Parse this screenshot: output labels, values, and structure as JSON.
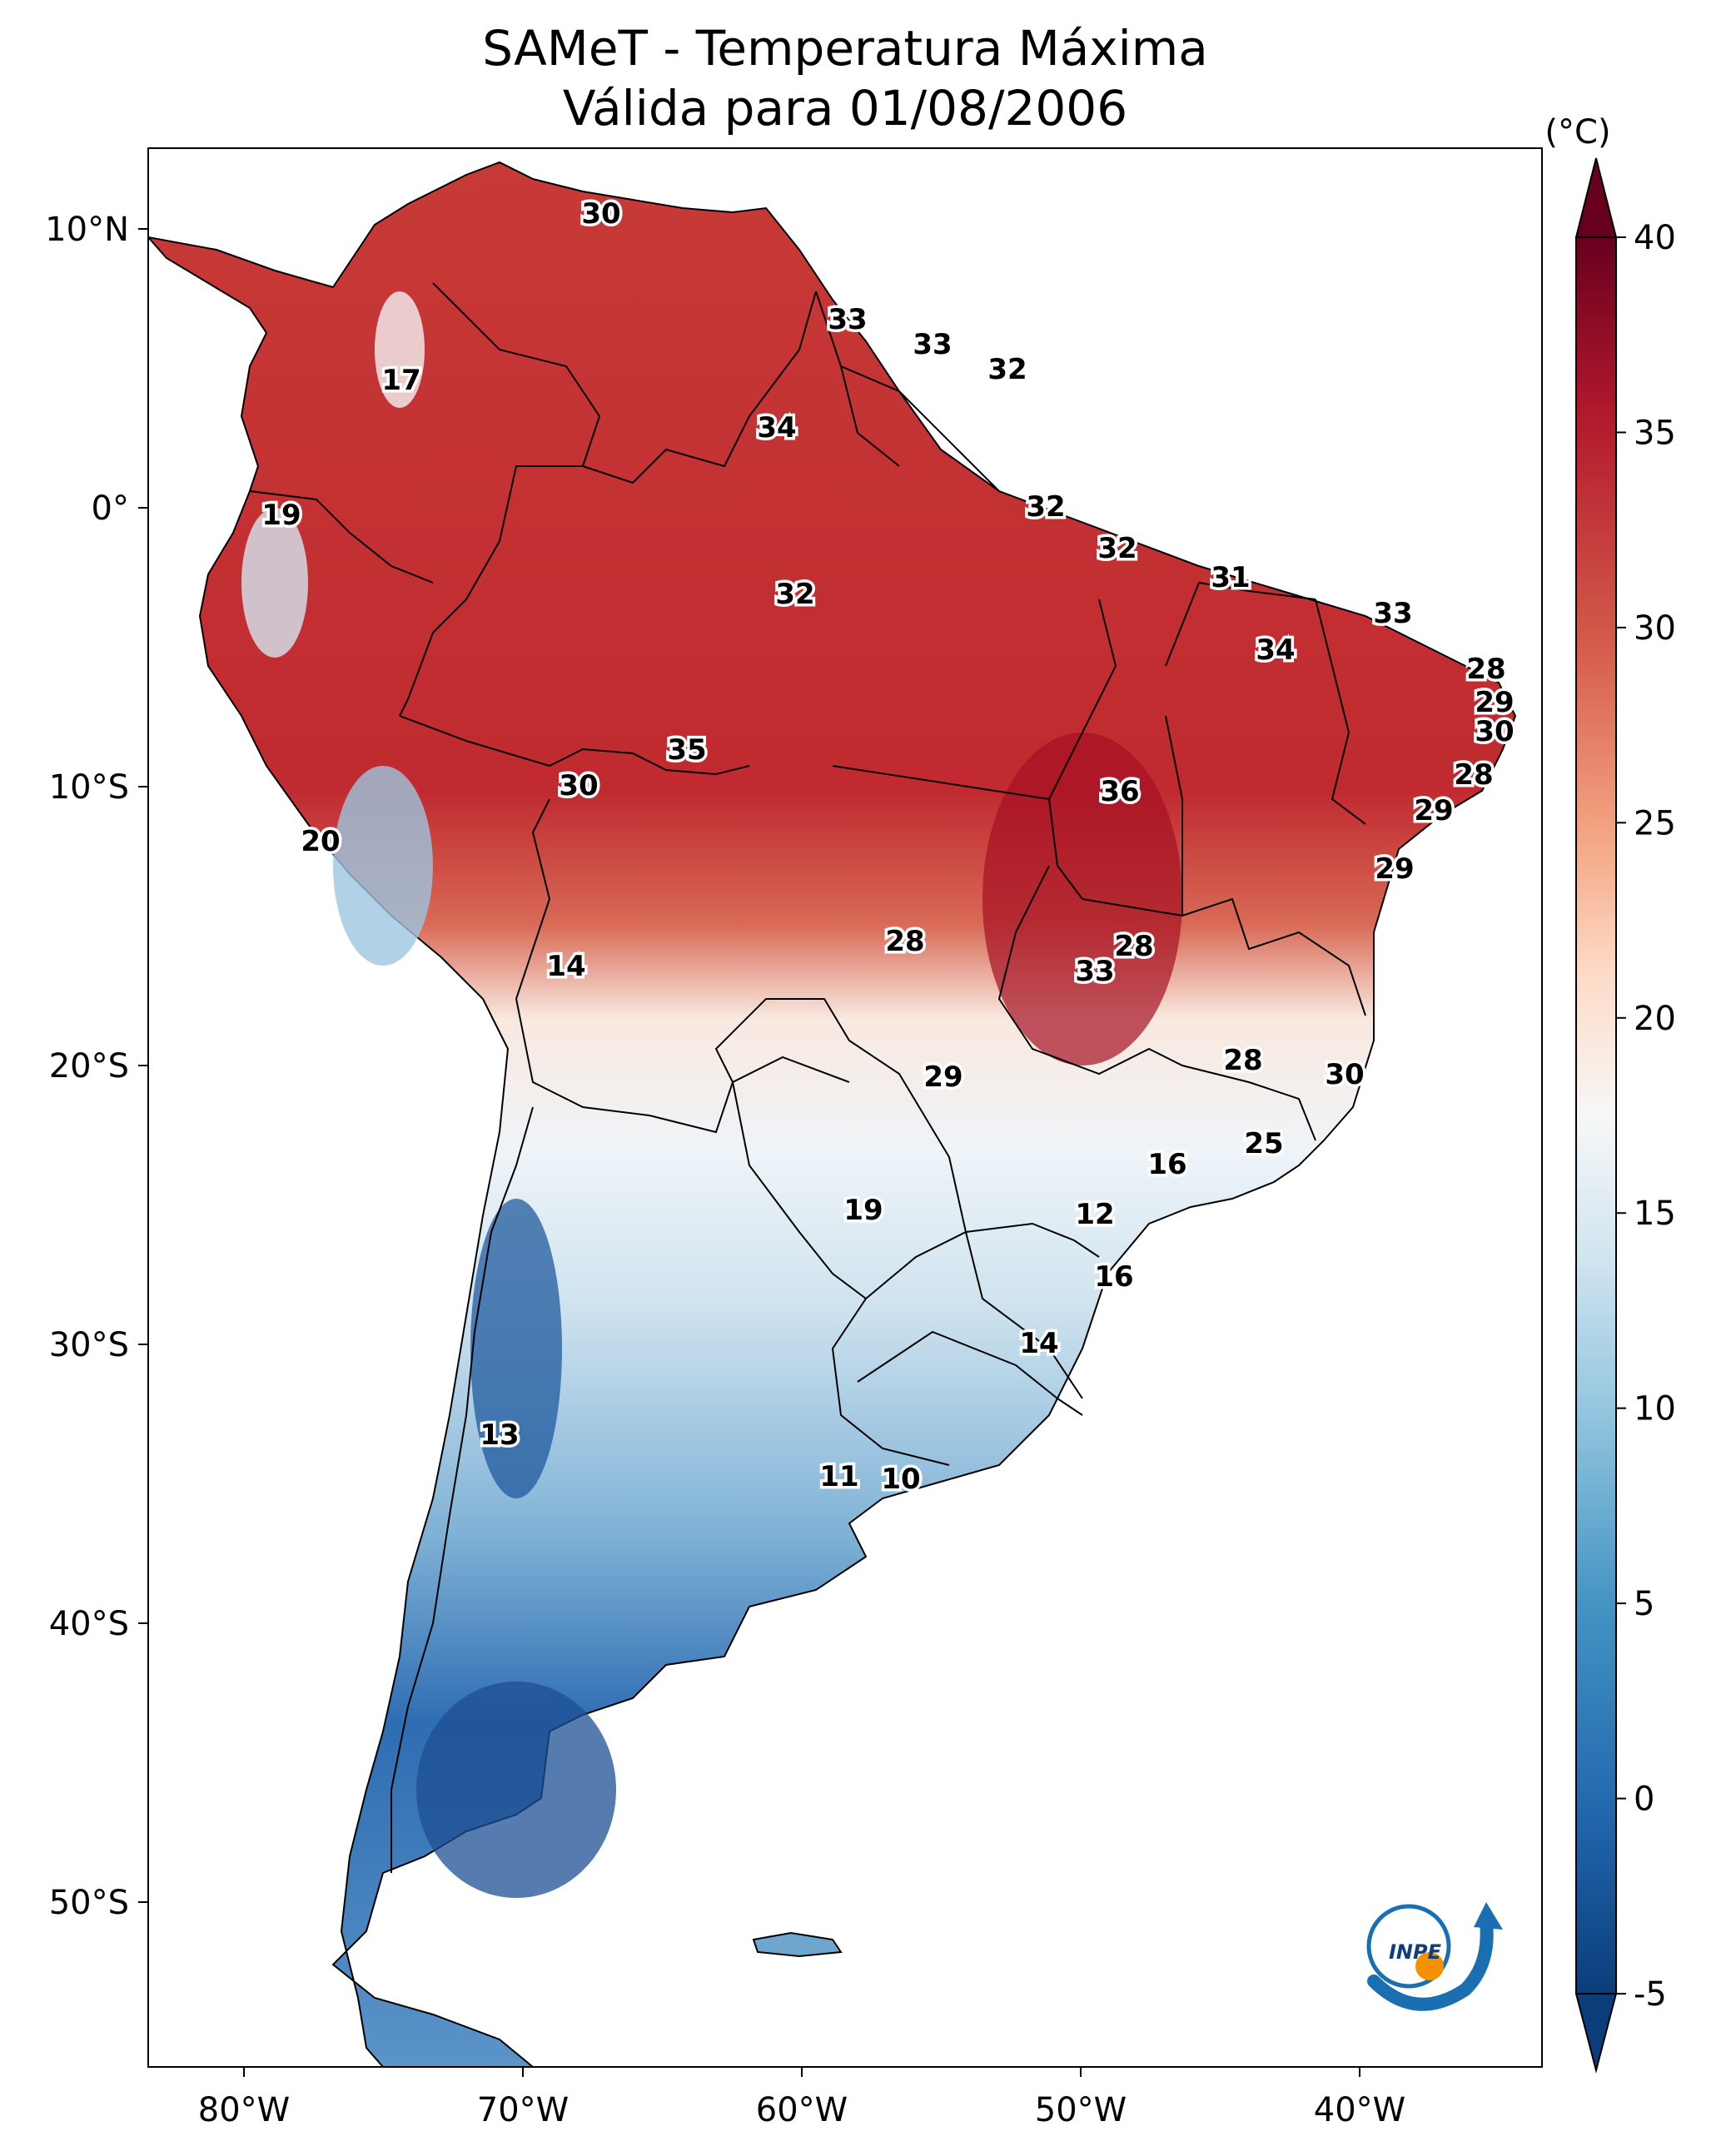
{
  "title_line1": "SAMeT - Temperatura Máxima",
  "title_line2": "Válida para 01/08/2006",
  "colorbar": {
    "unit": "(°C)",
    "min": -5,
    "max": 40,
    "ticks": [
      "40",
      "35",
      "30",
      "25",
      "20",
      "15",
      "10",
      "5",
      "0",
      "-5"
    ],
    "colors": [
      "#0b3d7a",
      "#2166ac",
      "#4393c3",
      "#92c5de",
      "#d1e5f0",
      "#f7f7f7",
      "#fddbc7",
      "#f4a582",
      "#d6604d",
      "#b2182b",
      "#67001f"
    ]
  },
  "lat_labels": [
    "10°N",
    "0°",
    "10°S",
    "20°S",
    "30°S",
    "40°S",
    "50°S"
  ],
  "lon_labels": [
    "80°W",
    "70°W",
    "60°W",
    "50°W",
    "40°W"
  ],
  "station_values": [
    "30",
    "33",
    "33",
    "32",
    "17",
    "34",
    "19",
    "32",
    "32",
    "32",
    "31",
    "33",
    "34",
    "28",
    "29",
    "30",
    "35",
    "30",
    "36",
    "28",
    "29",
    "20",
    "29",
    "14",
    "28",
    "28",
    "33",
    "29",
    "28",
    "30",
    "16",
    "25",
    "19",
    "12",
    "16",
    "14",
    "13",
    "11",
    "10"
  ],
  "logo": {
    "text": "INPE",
    "icon": "inpe-logo-icon"
  }
}
